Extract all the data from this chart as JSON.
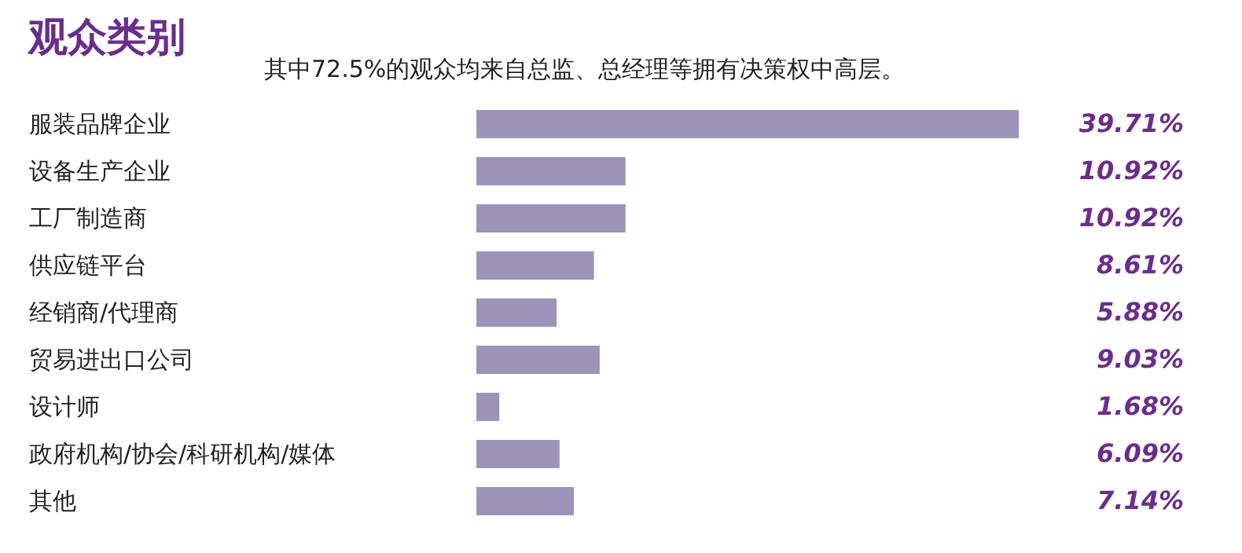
{
  "chart_data": {
    "type": "bar",
    "orientation": "horizontal",
    "title": "观众类别",
    "subtitle": "其中72.5%的观众均来自总监、总经理等拥有决策权中高层。",
    "categories": [
      "服装品牌企业",
      "设备生产企业",
      "工厂制造商",
      "供应链平台",
      "经销商/代理商",
      "贸易进出口公司",
      "设计师",
      "政府机构/协会/科研机构/媒体",
      "其他"
    ],
    "series": [
      {
        "color": "#9d93b9",
        "values": [
          39.71,
          10.92,
          10.92,
          8.61,
          5.88,
          9.03,
          1.68,
          6.09,
          7.14
        ],
        "value_labels": [
          "39.71%",
          "10.92%",
          "10.92%",
          "8.61%",
          "5.88%",
          "9.03%",
          "1.68%",
          "6.09%",
          "7.14%"
        ]
      }
    ]
  }
}
